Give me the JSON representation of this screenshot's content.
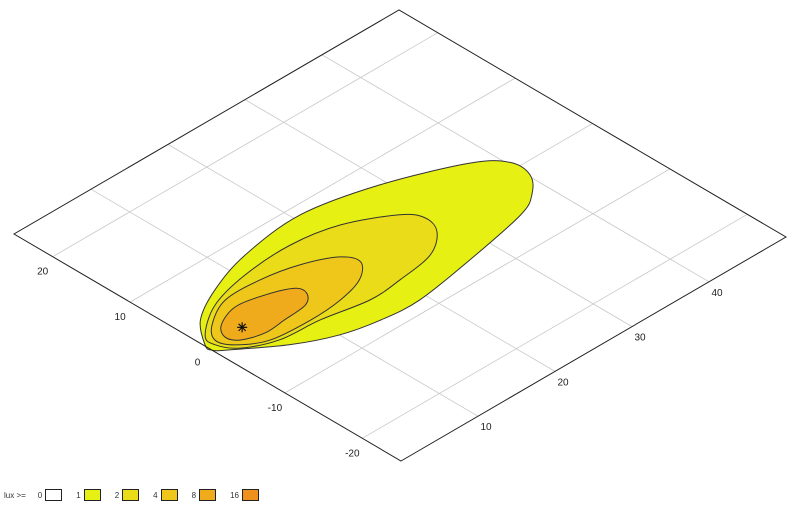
{
  "chart_data": {
    "type": "contour",
    "projection": "isometric",
    "xlim": [
      0,
      50
    ],
    "ylim": [
      -25,
      25
    ],
    "x_ticks": [
      10,
      20,
      30,
      40
    ],
    "y_ticks": [
      20,
      10,
      0,
      -10,
      -20
    ],
    "grid": true,
    "luminaire": {
      "x": 4.5,
      "y": 0
    },
    "legend": {
      "title": "lux >=",
      "placement": "bottom-left",
      "levels": [
        {
          "label": "0",
          "color": "#ffffff"
        },
        {
          "label": "1",
          "color": "#e6f013"
        },
        {
          "label": "2",
          "color": "#eadc18"
        },
        {
          "label": "4",
          "color": "#eec71a"
        },
        {
          "label": "8",
          "color": "#f0ab1c"
        },
        {
          "label": "16",
          "color": "#f0901c"
        }
      ]
    },
    "contours": [
      {
        "level": 1,
        "color": "#e6f013",
        "points": [
          [
            0.1,
            0.4
          ],
          [
            2.6,
            3.5
          ],
          [
            6.9,
            5.9
          ],
          [
            12.7,
            7.8
          ],
          [
            20.8,
            8.7
          ],
          [
            29.3,
            6.9
          ],
          [
            37.6,
            3.5
          ],
          [
            40.3,
            1.0
          ],
          [
            40.2,
            -1.7
          ],
          [
            38.1,
            -4.0
          ],
          [
            35.1,
            -5.5
          ],
          [
            26.8,
            -7.2
          ],
          [
            19.1,
            -8.4
          ],
          [
            14.3,
            -8.1
          ],
          [
            10.0,
            -7.1
          ],
          [
            5.7,
            -5.0
          ],
          [
            1.2,
            -1.7
          ],
          [
            0.0,
            -0.6
          ]
        ]
      },
      {
        "level": 2,
        "color": "#eadc18",
        "points": [
          [
            1.2,
            1.5
          ],
          [
            5.2,
            4.2
          ],
          [
            10.5,
            5.6
          ],
          [
            16.8,
            6.0
          ],
          [
            22.3,
            5.0
          ],
          [
            27.3,
            2.3
          ],
          [
            28.6,
            0.3
          ],
          [
            27.8,
            -2.0
          ],
          [
            24.8,
            -4.1
          ],
          [
            20.1,
            -4.9
          ],
          [
            15.9,
            -5.2
          ],
          [
            10.4,
            -4.2
          ],
          [
            5.6,
            -3.8
          ],
          [
            2.1,
            -2.2
          ],
          [
            0.8,
            -0.2
          ]
        ]
      },
      {
        "level": 4,
        "color": "#eec71a",
        "points": [
          [
            2.8,
            2.2
          ],
          [
            6.4,
            4.1
          ],
          [
            10.9,
            4.1
          ],
          [
            15.2,
            3.2
          ],
          [
            18.7,
            1.5
          ],
          [
            19.5,
            -0.4
          ],
          [
            17.4,
            -2.3
          ],
          [
            13.9,
            -3.3
          ],
          [
            9.7,
            -3.6
          ],
          [
            4.9,
            -3.2
          ],
          [
            2.1,
            -1.5
          ],
          [
            1.3,
            0.3
          ]
        ]
      },
      {
        "level": 8,
        "color": "#f0ab1c",
        "points": [
          [
            3.4,
            1.6
          ],
          [
            6.3,
            2.7
          ],
          [
            9.6,
            2.1
          ],
          [
            12.3,
            0.9
          ],
          [
            12.5,
            -0.4
          ],
          [
            11.1,
            -1.6
          ],
          [
            8.1,
            -1.9
          ],
          [
            5.4,
            -2.1
          ],
          [
            3.0,
            -1.3
          ],
          [
            2.3,
            0.0
          ]
        ]
      }
    ]
  }
}
